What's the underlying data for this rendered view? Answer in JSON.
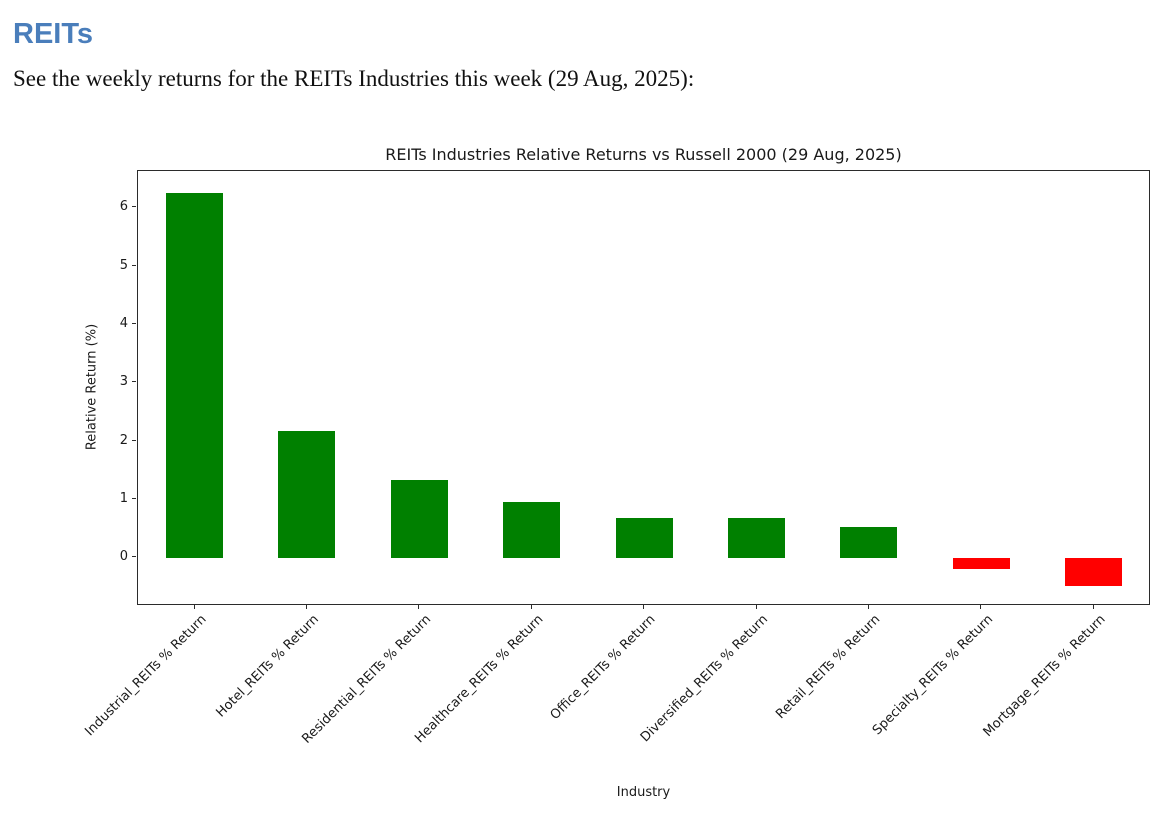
{
  "header": {
    "title": "REITs",
    "subtitle": "See the weekly returns for the REITs Industries this week (29 Aug, 2025):"
  },
  "chart_data": {
    "type": "bar",
    "title": "REITs Industries Relative Returns vs Russell 2000 (29 Aug, 2025)",
    "xlabel": "Industry",
    "ylabel": "Relative Return (%)",
    "categories": [
      "Industrial_REITs % Return",
      "Hotel_REITs % Return",
      "Residential_REITs % Return",
      "Healthcare_REITs % Return",
      "Office_REITs % Return",
      "Diversified_REITs % Return",
      "Retail_REITs % Return",
      "Specialty_REITs % Return",
      "Mortgage_REITs % Return"
    ],
    "values": [
      6.25,
      2.17,
      1.33,
      0.95,
      0.68,
      0.68,
      0.53,
      -0.2,
      -0.48
    ],
    "yticks": [
      0,
      1,
      2,
      3,
      4,
      5,
      6
    ],
    "ylim": [
      -0.85,
      6.63
    ],
    "grid": false,
    "legend_position": "none",
    "positive_color": "#008000",
    "negative_color": "#ff0000"
  },
  "colors": {
    "heading": "#4a7ebb",
    "chart_text": "#1a1a1a"
  }
}
